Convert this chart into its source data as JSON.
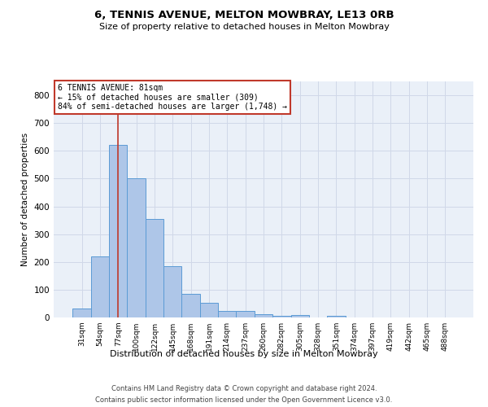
{
  "title1": "6, TENNIS AVENUE, MELTON MOWBRAY, LE13 0RB",
  "title2": "Size of property relative to detached houses in Melton Mowbray",
  "xlabel": "Distribution of detached houses by size in Melton Mowbray",
  "ylabel": "Number of detached properties",
  "categories": [
    "31sqm",
    "54sqm",
    "77sqm",
    "100sqm",
    "122sqm",
    "145sqm",
    "168sqm",
    "191sqm",
    "214sqm",
    "237sqm",
    "260sqm",
    "282sqm",
    "305sqm",
    "328sqm",
    "351sqm",
    "374sqm",
    "397sqm",
    "419sqm",
    "442sqm",
    "465sqm",
    "488sqm"
  ],
  "values": [
    32,
    220,
    620,
    500,
    355,
    185,
    85,
    52,
    23,
    22,
    13,
    5,
    8,
    0,
    6,
    0,
    0,
    0,
    0,
    0,
    0
  ],
  "bar_color": "#aec6e8",
  "bar_edgecolor": "#5b9bd5",
  "property_label": "6 TENNIS AVENUE: 81sqm",
  "annotation_line1": "← 15% of detached houses are smaller (309)",
  "annotation_line2": "84% of semi-detached houses are larger (1,748) →",
  "vline_x_index": 2,
  "vline_color": "#c0392b",
  "annotation_box_color": "#c0392b",
  "ylim": [
    0,
    850
  ],
  "yticks": [
    0,
    100,
    200,
    300,
    400,
    500,
    600,
    700,
    800
  ],
  "grid_color": "#d0d8e8",
  "background_color": "#eaf0f8",
  "footer1": "Contains HM Land Registry data © Crown copyright and database right 2024.",
  "footer2": "Contains public sector information licensed under the Open Government Licence v3.0."
}
